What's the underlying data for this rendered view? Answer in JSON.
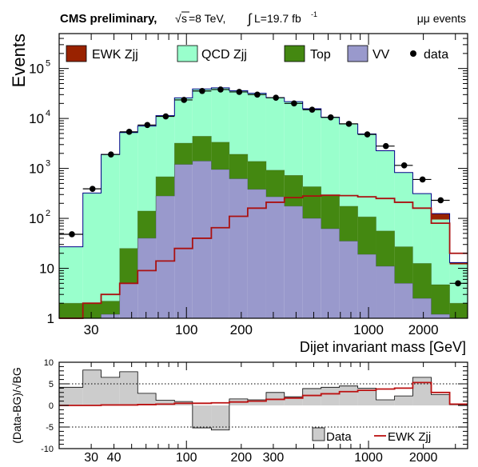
{
  "header": {
    "title": "CMS preliminary,",
    "energy_sqrt": "s",
    "energy_rest": "=8 TeV,",
    "lumi_int": "∫",
    "lumi": "L=19.7 fb",
    "lumi_exp": "-1",
    "channel": "μμ events"
  },
  "chart_data": [
    {
      "type": "bar",
      "stacked": true,
      "log_y": true,
      "log_x": true,
      "ylabel": "Events",
      "xlabel": "Dijet invariant mass [GeV]",
      "xlim": [
        20,
        3500
      ],
      "ylim": [
        1,
        500000
      ],
      "y_tick_labels": [
        {
          "v": 1,
          "t": "1"
        },
        {
          "v": 10,
          "t": "10"
        },
        {
          "v": 100,
          "t": "10",
          "e": "2"
        },
        {
          "v": 1000,
          "t": "10",
          "e": "3"
        },
        {
          "v": 10000,
          "t": "10",
          "e": "4"
        },
        {
          "v": 100000,
          "t": "10",
          "e": "5"
        }
      ],
      "x_tick_labels": [
        {
          "v": 30,
          "t": "30"
        },
        {
          "v": 100,
          "t": "100"
        },
        {
          "v": 200,
          "t": "200"
        },
        {
          "v": 1000,
          "t": "1000"
        },
        {
          "v": 2000,
          "t": "2000"
        }
      ],
      "bin_edges": [
        20,
        27,
        34,
        43,
        54,
        68,
        86,
        108,
        137,
        172,
        217,
        274,
        345,
        435,
        549,
        692,
        873,
        1100,
        1390,
        1750,
        2210,
        2790,
        3500
      ],
      "legend": {
        "placement": "top",
        "data_label": "data"
      },
      "series": [
        {
          "name": "VV",
          "color": "#9999cc",
          "values": [
            1,
            1,
            1.2,
            5,
            40,
            280,
            1200,
            1400,
            950,
            620,
            380,
            270,
            175,
            100,
            62,
            35,
            19,
            11,
            5,
            2.5,
            1.2,
            1
          ]
        },
        {
          "name": "Top",
          "color": "#448811",
          "values": [
            1,
            1,
            1,
            20,
            100,
            400,
            2000,
            3000,
            2400,
            1300,
            1000,
            650,
            550,
            330,
            230,
            140,
            88,
            45,
            22,
            10,
            3.5,
            1
          ]
        },
        {
          "name": "QCD Zjj",
          "color": "#99ffcc",
          "values": [
            25,
            320,
            1900,
            5200,
            6900,
            10700,
            22600,
            34600,
            37600,
            34100,
            30600,
            25100,
            21000,
            15200,
            10300,
            7600,
            4800,
            2200,
            800,
            300,
            90,
            10
          ]
        },
        {
          "name": "EWK Zjj",
          "color": "#992200",
          "values": [
            0,
            0,
            0,
            0,
            0,
            0,
            0,
            0,
            0,
            0,
            0,
            0,
            0,
            0,
            0,
            0,
            0,
            0,
            0,
            0,
            30,
            1
          ]
        }
      ],
      "ewk_overlay": [
        1,
        2,
        3,
        5,
        9,
        14,
        25,
        40,
        65,
        110,
        160,
        210,
        260,
        280,
        290,
        285,
        270,
        250,
        210,
        160,
        80,
        20
      ],
      "data_points": [
        {
          "x": 23.5,
          "y": 48
        },
        {
          "x": 30.5,
          "y": 390
        },
        {
          "x": 38.5,
          "y": 1900
        },
        {
          "x": 48.5,
          "y": 5400
        },
        {
          "x": 61,
          "y": 7400
        },
        {
          "x": 77,
          "y": 11000
        },
        {
          "x": 97,
          "y": 23500
        },
        {
          "x": 122,
          "y": 35500
        },
        {
          "x": 154,
          "y": 38000
        },
        {
          "x": 195,
          "y": 34000
        },
        {
          "x": 245,
          "y": 30000
        },
        {
          "x": 310,
          "y": 26000
        },
        {
          "x": 390,
          "y": 20000
        },
        {
          "x": 490,
          "y": 15000
        },
        {
          "x": 620,
          "y": 10500
        },
        {
          "x": 780,
          "y": 7800
        },
        {
          "x": 985,
          "y": 4800
        },
        {
          "x": 1245,
          "y": 2800
        },
        {
          "x": 1570,
          "y": 1150
        },
        {
          "x": 1980,
          "y": 600
        },
        {
          "x": 2490,
          "y": 230
        },
        {
          "x": 3100,
          "y": 5
        }
      ]
    },
    {
      "type": "bar",
      "log_x": true,
      "ylabel": "(Data-BG)/√BG",
      "xlim": [
        20,
        3500
      ],
      "ylim": [
        -10,
        10
      ],
      "y_ticks": [
        -10,
        -5,
        0,
        5,
        10
      ],
      "x_tick_labels": [
        {
          "v": 30,
          "t": "30"
        },
        {
          "v": 40,
          "t": "40"
        },
        {
          "v": 100,
          "t": "100"
        },
        {
          "v": 200,
          "t": "200"
        },
        {
          "v": 300,
          "t": "300"
        },
        {
          "v": 1000,
          "t": "1000"
        },
        {
          "v": 2000,
          "t": "2000"
        }
      ],
      "reference_lines": [
        -5,
        5
      ],
      "bin_edges": [
        20,
        27,
        34,
        43,
        54,
        68,
        86,
        108,
        137,
        172,
        217,
        274,
        345,
        435,
        549,
        692,
        873,
        1100,
        1390,
        1750,
        2210,
        2790,
        3500
      ],
      "series": [
        {
          "name": "Data",
          "color": "#cccccc",
          "values": [
            4.2,
            8.2,
            6.5,
            7.8,
            2.8,
            1.2,
            0.9,
            -5.2,
            -5.7,
            1.5,
            1.3,
            3.0,
            2.0,
            3.9,
            4.2,
            4.5,
            4.0,
            1.3,
            2.2,
            6.5,
            2.5,
            0.2
          ]
        }
      ],
      "ewk_line": {
        "name": "EWK Zjj",
        "color": "#bb1111",
        "values": [
          0,
          0,
          0.1,
          0.1,
          0.2,
          0.3,
          0.5,
          0.5,
          0.6,
          0.8,
          1.0,
          1.4,
          1.7,
          2.3,
          2.7,
          3.2,
          3.5,
          3.8,
          4.0,
          5.3,
          3.0,
          0.3
        ]
      }
    }
  ]
}
